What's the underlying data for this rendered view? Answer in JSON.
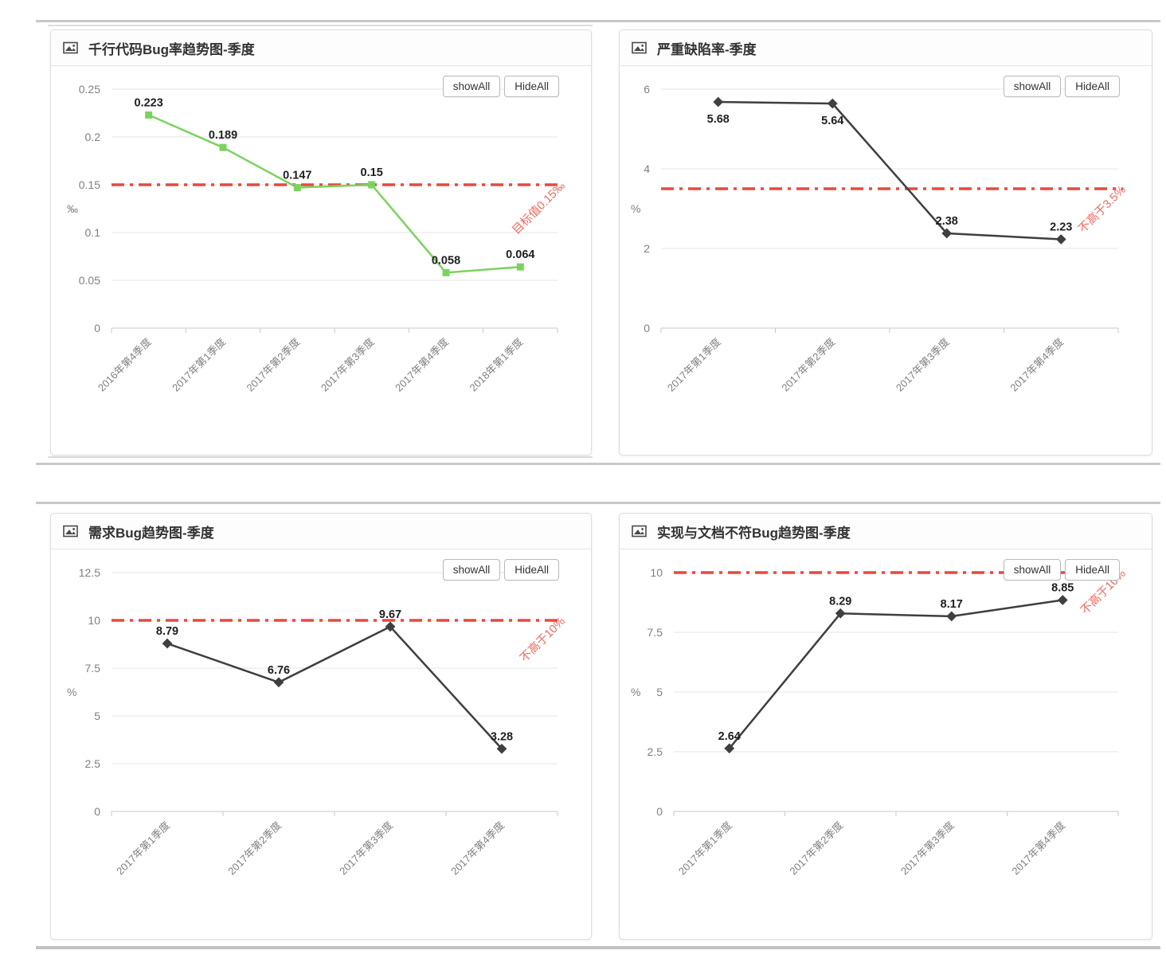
{
  "page": {
    "buttons": {
      "show_all": "showAll",
      "hide_all": "HideAll"
    }
  },
  "colors": {
    "target_red": "#e8483f",
    "target_label_red": "#ec6a60",
    "series_green": "#7bd35f",
    "series_dark": "#3f3f3f",
    "grid": "#e6e6e6",
    "axis": "#c8c8c8",
    "tick_text": "#808080",
    "label_text": "#1f1f1f"
  },
  "chart_data": [
    {
      "type": "line",
      "title": "千行代码Bug率趋势图-季度",
      "ylabel": "‰",
      "categories": [
        "2016年第4季度",
        "2017年第1季度",
        "2017年第2季度",
        "2017年第3季度",
        "2017年第4季度",
        "2018年第1季度"
      ],
      "series": [
        {
          "values": [
            0.223,
            0.189,
            0.147,
            0.15,
            0.058,
            0.064
          ]
        }
      ],
      "point_labels": [
        "0.223",
        "0.189",
        "0.147",
        "0.15",
        "0.058",
        "0.064"
      ],
      "point_label_positions": [
        "top",
        "top",
        "top",
        "top",
        "top",
        "top"
      ],
      "y_ticks": {
        "values": [
          0,
          0.05,
          0.1,
          0.15,
          0.2,
          0.25
        ],
        "labels": [
          "0",
          "0.05",
          "0.1",
          "0.15",
          "0.2",
          "0.25"
        ]
      },
      "ylim": [
        0,
        0.25
      ],
      "target_line": {
        "value": 0.15,
        "label": "目标值0.15‰"
      },
      "marker": "square",
      "series_color_key": "series_green",
      "grid": "on",
      "legend": "none"
    },
    {
      "type": "line",
      "title": "严重缺陷率-季度",
      "ylabel": "%",
      "categories": [
        "2017年第1季度",
        "2017年第2季度",
        "2017年第3季度",
        "2017年第4季度"
      ],
      "series": [
        {
          "values": [
            5.68,
            5.64,
            2.38,
            2.23
          ]
        }
      ],
      "point_labels": [
        "5.68",
        "5.64",
        "2.38",
        "2.23"
      ],
      "point_label_positions": [
        "bottom",
        "bottom",
        "top",
        "top"
      ],
      "y_ticks": {
        "values": [
          0,
          2,
          4,
          6
        ],
        "labels": [
          "0",
          "2",
          "4",
          "6"
        ]
      },
      "ylim": [
        0,
        6
      ],
      "target_line": {
        "value": 3.5,
        "label": "不高于3.5%"
      },
      "marker": "diamond",
      "series_color_key": "series_dark",
      "grid": "on",
      "legend": "none"
    },
    {
      "type": "line",
      "title": "需求Bug趋势图-季度",
      "ylabel": "%",
      "categories": [
        "2017年第1季度",
        "2017年第2季度",
        "2017年第3季度",
        "2017年第4季度"
      ],
      "series": [
        {
          "values": [
            8.79,
            6.76,
            9.67,
            3.28
          ]
        }
      ],
      "point_labels": [
        "8.79",
        "6.76",
        "9.67",
        "3.28"
      ],
      "point_label_positions": [
        "top",
        "top",
        "top",
        "top"
      ],
      "y_ticks": {
        "values": [
          0,
          2.5,
          5,
          7.5,
          10,
          12.5
        ],
        "labels": [
          "0",
          "2.5",
          "5",
          "7.5",
          "10",
          "12.5"
        ]
      },
      "ylim": [
        0,
        12.5
      ],
      "target_line": {
        "value": 10,
        "label": "不高于10%"
      },
      "marker": "diamond",
      "series_color_key": "series_dark",
      "grid": "on",
      "legend": "none"
    },
    {
      "type": "line",
      "title": "实现与文档不符Bug趋势图-季度",
      "ylabel": "%",
      "categories": [
        "2017年第1季度",
        "2017年第2季度",
        "2017年第3季度",
        "2017年第4季度"
      ],
      "series": [
        {
          "values": [
            2.64,
            8.29,
            8.17,
            8.85
          ]
        }
      ],
      "point_labels": [
        "2.64",
        "8.29",
        "8.17",
        "8.85"
      ],
      "point_label_positions": [
        "top",
        "top",
        "top",
        "top"
      ],
      "y_ticks": {
        "values": [
          0,
          2.5,
          5,
          7.5,
          10
        ],
        "labels": [
          "0",
          "2.5",
          "5",
          "7.5",
          "10"
        ]
      },
      "ylim": [
        0,
        10
      ],
      "target_line": {
        "value": 10,
        "label": "不高于10%"
      },
      "marker": "diamond",
      "series_color_key": "series_dark",
      "grid": "on",
      "legend": "none"
    }
  ]
}
